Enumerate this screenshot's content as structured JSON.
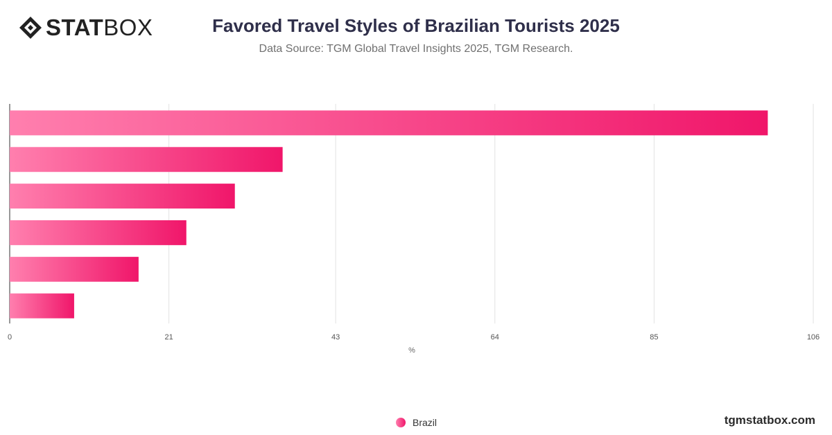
{
  "brand": {
    "logo_bold": "STAT",
    "logo_light": "BOX",
    "website": "tgmstatbox.com"
  },
  "chart_data": {
    "type": "bar",
    "orientation": "horizontal",
    "title": "Favored Travel Styles of Brazilian Tourists 2025",
    "subtitle": "Data Source: TGM Global Travel Insights 2025, TGM Research.",
    "xlabel": "%",
    "ylabel": "",
    "categories": [
      "",
      "",
      "",
      "",
      "",
      ""
    ],
    "series": [
      {
        "name": "Brazil",
        "values": [
          100,
          36,
          29.7,
          23.3,
          17,
          8.5
        ]
      }
    ],
    "xlim": [
      0,
      106
    ],
    "xticks": [
      "0",
      "21",
      "43",
      "64",
      "85",
      "106"
    ],
    "grid": true,
    "legend_position": "bottom",
    "colors": {
      "bar_start": "#ff7fae",
      "bar_end": "#f0166a"
    }
  }
}
